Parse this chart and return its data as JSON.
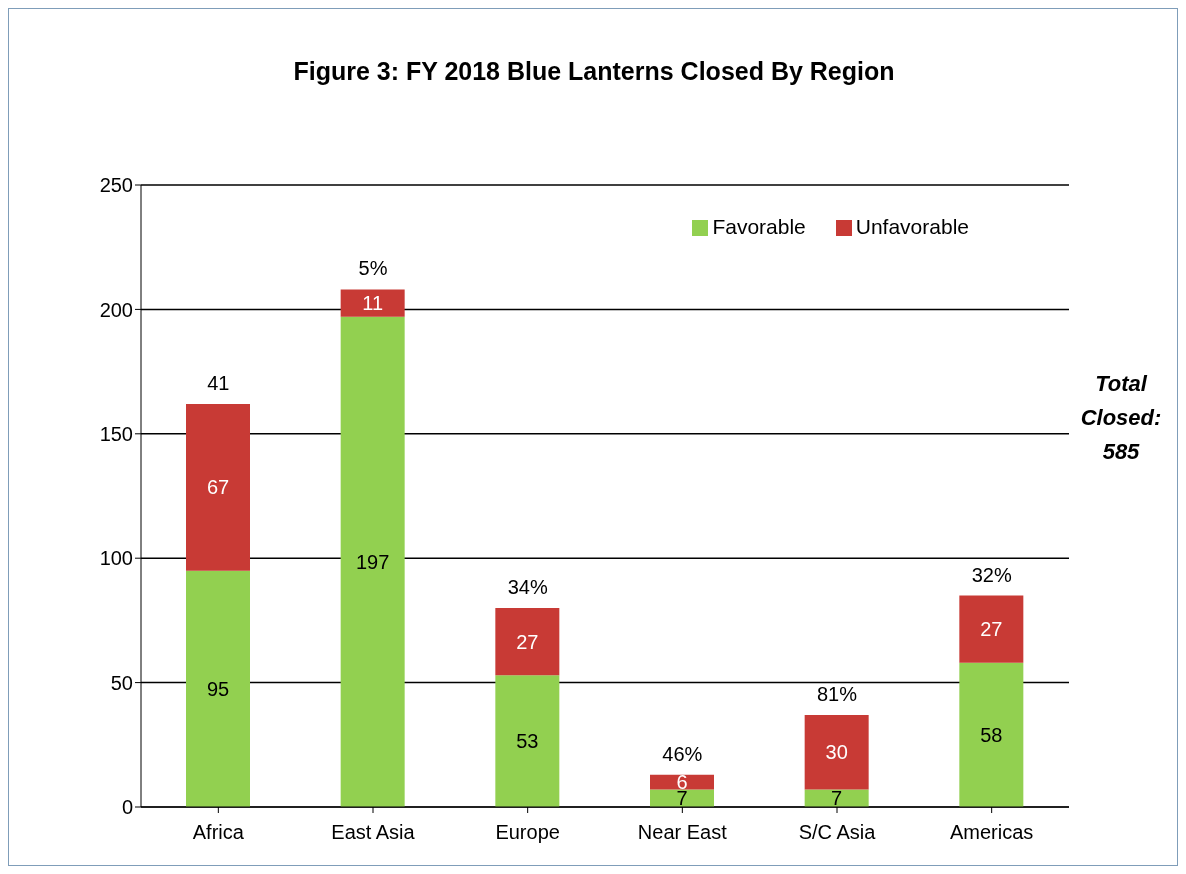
{
  "chart_data": {
    "type": "bar",
    "title": "Figure 3: FY 2018 Blue Lanterns Closed By Region",
    "categories": [
      "Africa",
      "East Asia",
      "Europe",
      "Near East",
      "S/C Asia",
      "Americas"
    ],
    "series": [
      {
        "name": "Favorable",
        "color": "#92d050",
        "values": [
          95,
          197,
          53,
          7,
          7,
          58
        ]
      },
      {
        "name": "Unfavorable",
        "color": "#c83a35",
        "values": [
          67,
          11,
          27,
          6,
          30,
          27
        ]
      }
    ],
    "stacked": true,
    "data_labels": true,
    "ylim": [
      0,
      250
    ],
    "yticks": [
      0,
      50,
      100,
      150,
      200,
      250
    ],
    "grid": "y",
    "legend": "top right",
    "annotations": [
      {
        "text": "41",
        "x": "Africa",
        "y": 162
      },
      {
        "text": "5%",
        "x": "East Asia",
        "y": 208
      },
      {
        "text": "34%",
        "x": "Europe",
        "y": 80
      },
      {
        "text": "46%",
        "x": "Near East",
        "y": 13
      },
      {
        "text": "81%",
        "x": "S/C Asia",
        "y": 37
      },
      {
        "text": "32%",
        "x": "Americas",
        "y": 85
      },
      "Total Closed: 585"
    ]
  }
}
